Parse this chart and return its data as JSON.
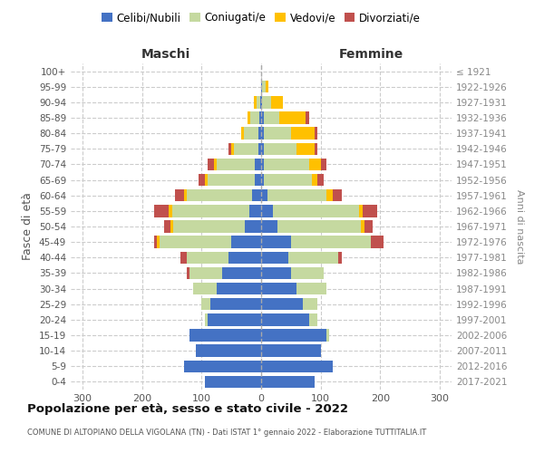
{
  "age_groups": [
    "0-4",
    "5-9",
    "10-14",
    "15-19",
    "20-24",
    "25-29",
    "30-34",
    "35-39",
    "40-44",
    "45-49",
    "50-54",
    "55-59",
    "60-64",
    "65-69",
    "70-74",
    "75-79",
    "80-84",
    "85-89",
    "90-94",
    "95-99",
    "100+"
  ],
  "birth_years": [
    "2017-2021",
    "2012-2016",
    "2007-2011",
    "2002-2006",
    "1997-2001",
    "1992-1996",
    "1987-1991",
    "1982-1986",
    "1977-1981",
    "1972-1976",
    "1967-1971",
    "1962-1966",
    "1957-1961",
    "1952-1956",
    "1947-1951",
    "1942-1946",
    "1937-1941",
    "1932-1936",
    "1927-1931",
    "1922-1926",
    "≤ 1921"
  ],
  "males": {
    "celibi": [
      95,
      130,
      110,
      120,
      90,
      85,
      75,
      65,
      55,
      50,
      28,
      20,
      15,
      10,
      10,
      5,
      4,
      3,
      2,
      0,
      0
    ],
    "coniugati": [
      0,
      0,
      0,
      0,
      5,
      15,
      40,
      55,
      70,
      120,
      120,
      130,
      110,
      80,
      65,
      40,
      25,
      15,
      5,
      0,
      0
    ],
    "vedovi": [
      0,
      0,
      0,
      0,
      0,
      0,
      0,
      0,
      0,
      5,
      5,
      5,
      5,
      5,
      5,
      5,
      5,
      5,
      5,
      0,
      0
    ],
    "divorziati": [
      0,
      0,
      0,
      0,
      0,
      0,
      0,
      5,
      10,
      5,
      10,
      25,
      15,
      10,
      10,
      5,
      0,
      0,
      0,
      0,
      0
    ]
  },
  "females": {
    "nubili": [
      90,
      120,
      100,
      110,
      80,
      70,
      60,
      50,
      45,
      50,
      28,
      20,
      10,
      5,
      5,
      5,
      5,
      5,
      2,
      2,
      0
    ],
    "coniugate": [
      0,
      0,
      0,
      5,
      15,
      25,
      50,
      55,
      85,
      135,
      140,
      145,
      100,
      80,
      75,
      55,
      45,
      25,
      15,
      5,
      0
    ],
    "vedove": [
      0,
      0,
      0,
      0,
      0,
      0,
      0,
      0,
      0,
      0,
      5,
      5,
      10,
      10,
      20,
      30,
      40,
      45,
      20,
      5,
      0
    ],
    "divorziate": [
      0,
      0,
      0,
      0,
      0,
      0,
      0,
      0,
      5,
      20,
      15,
      25,
      15,
      10,
      10,
      5,
      5,
      5,
      0,
      0,
      0
    ]
  },
  "colors": {
    "celibi": "#4472c4",
    "coniugati": "#c5d9a0",
    "vedovi": "#ffc000",
    "divorziati": "#c0504d"
  },
  "xlim": 320,
  "title": "Popolazione per età, sesso e stato civile - 2022",
  "subtitle": "COMUNE DI ALTOPIANO DELLA VIGOLANA (TN) - Dati ISTAT 1° gennaio 2022 - Elaborazione TUTTITALIA.IT",
  "ylabel_left": "Fasce di età",
  "ylabel_right": "Anni di nascita",
  "xlabel_left": "Maschi",
  "xlabel_right": "Femmine"
}
